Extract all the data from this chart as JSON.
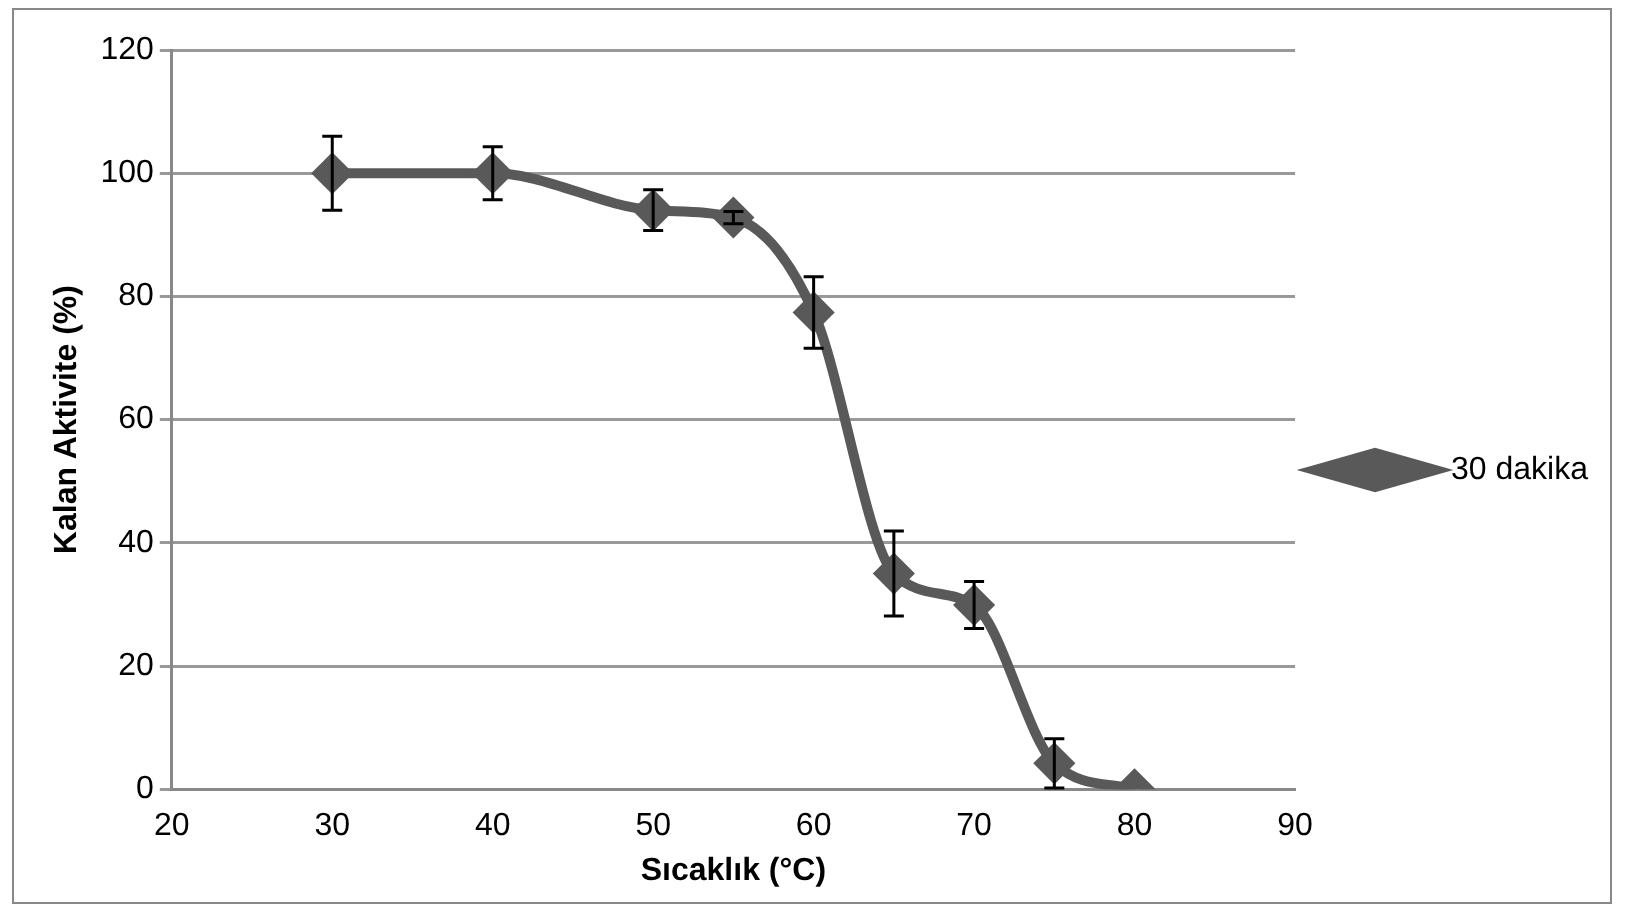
{
  "chart_data": {
    "type": "line",
    "xlabel": "Sıcaklık (°C)",
    "ylabel": "Kalan Aktivite (%)",
    "x": [
      30,
      40,
      50,
      55,
      60,
      65,
      70,
      75,
      80
    ],
    "series": [
      {
        "name": "30 dakika",
        "color": "#595959",
        "values": [
          100,
          100,
          94,
          92.8,
          77.4,
          35,
          29.9,
          4.2,
          0
        ],
        "errors": [
          6,
          4.3,
          3.3,
          1,
          5.8,
          6.9,
          3.8,
          4,
          null
        ]
      }
    ],
    "xlim": [
      20,
      90
    ],
    "xticks": [
      20,
      30,
      40,
      50,
      60,
      70,
      80,
      90
    ],
    "ylim": [
      0,
      120
    ],
    "yticks": [
      0,
      20,
      40,
      60,
      80,
      100,
      120
    ],
    "grid": "y",
    "legend": "right",
    "marker": "diamond",
    "line_style": "solid"
  }
}
